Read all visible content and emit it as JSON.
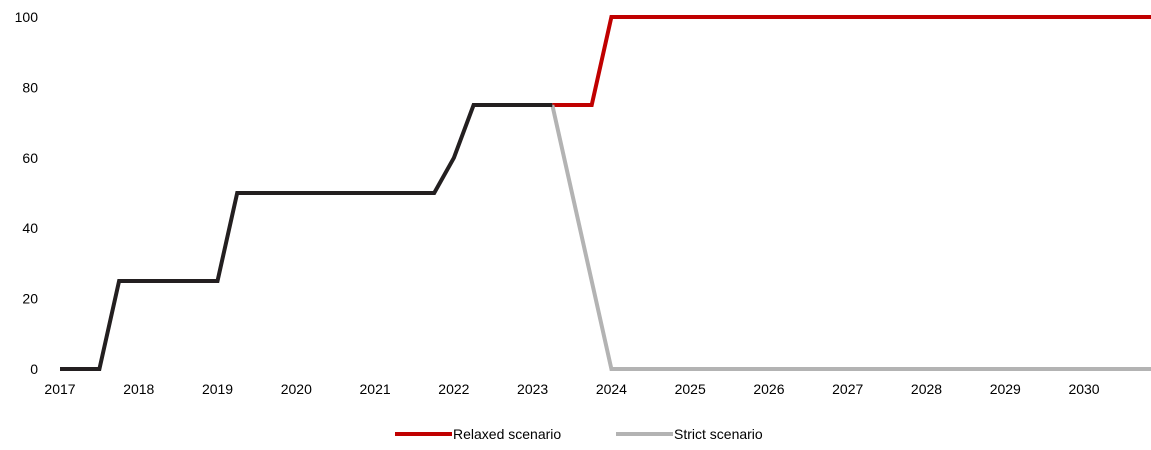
{
  "chart_data": {
    "type": "line",
    "title": "",
    "xlabel": "",
    "ylabel": "",
    "ylim": [
      0,
      100
    ],
    "xlim": [
      2017,
      2030.85
    ],
    "grid": false,
    "legend_position": "bottom-center",
    "y_ticks": [
      "0",
      "20",
      "40",
      "60",
      "80",
      "100"
    ],
    "x_ticks": [
      "2017",
      "2018",
      "2019",
      "2020",
      "2021",
      "2022",
      "2023",
      "2024",
      "2025",
      "2026",
      "2027",
      "2028",
      "2029",
      "2030"
    ],
    "history": {
      "color": "#231f20",
      "points": [
        [
          2017,
          0
        ],
        [
          2017.5,
          0
        ],
        [
          2017.75,
          25
        ],
        [
          2019,
          25
        ],
        [
          2019.25,
          50
        ],
        [
          2021.75,
          50
        ],
        [
          2022,
          60
        ],
        [
          2022.25,
          75
        ],
        [
          2023.25,
          75
        ]
      ]
    },
    "series": [
      {
        "name": "Relaxed scenario",
        "color": "#c00000",
        "points": [
          [
            2023.25,
            75
          ],
          [
            2023.75,
            75
          ],
          [
            2024,
            100
          ],
          [
            2030.85,
            100
          ]
        ]
      },
      {
        "name": "Strict scenario",
        "color": "#b3b3b3",
        "points": [
          [
            2023.25,
            75
          ],
          [
            2024,
            0
          ],
          [
            2030.85,
            0
          ]
        ]
      }
    ]
  }
}
